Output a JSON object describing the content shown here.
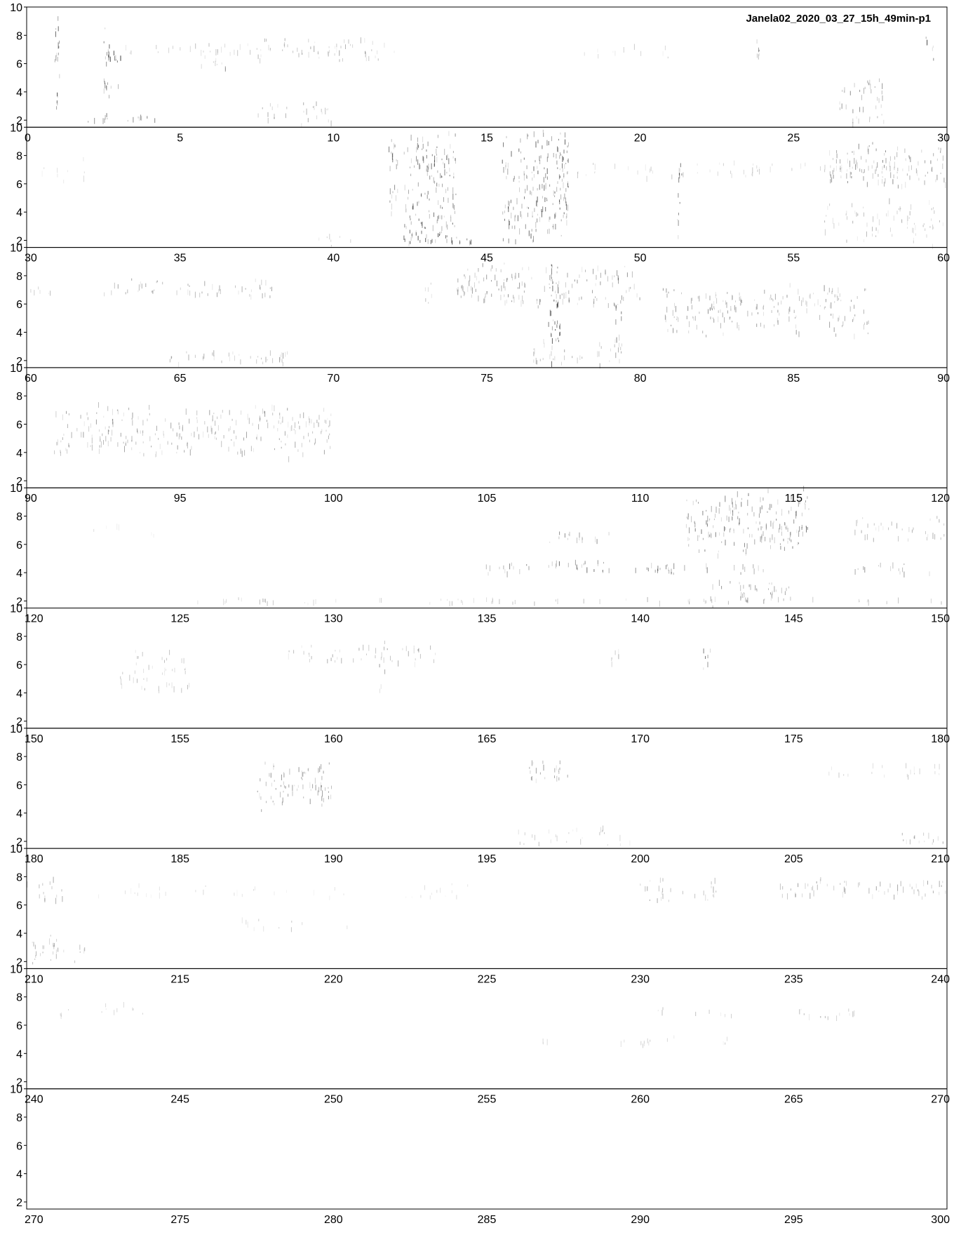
{
  "chart_data": {
    "type": "spectrogram",
    "title": "Janela02_2020_03_27_15h_49min-p1",
    "xlabel": "",
    "ylabel": "",
    "rows": 10,
    "seconds_per_row": 30,
    "x_total_range": [
      0,
      300
    ],
    "ylim": [
      1.5,
      10
    ],
    "y_ticks": [
      2,
      4,
      6,
      8,
      10
    ],
    "x_tick_step": 5,
    "grid": false,
    "ink_color": "#000000",
    "background_color": "#ffffff",
    "events": [
      {
        "t0": 0.9,
        "t1": 1.1,
        "f0": 2,
        "f1": 10,
        "intensity": 0.9
      },
      {
        "t0": 2.5,
        "t1": 3.2,
        "f0": 6,
        "f1": 7,
        "intensity": 1.0
      },
      {
        "t0": 2.5,
        "t1": 2.7,
        "f0": 1.5,
        "f1": 10,
        "intensity": 0.8
      },
      {
        "t0": 1.8,
        "t1": 4.2,
        "f0": 1.8,
        "f1": 2.4,
        "intensity": 0.7
      },
      {
        "t0": 2.5,
        "t1": 3.0,
        "f0": 4.0,
        "f1": 5.0,
        "intensity": 0.6
      },
      {
        "t0": 5.5,
        "t1": 6.5,
        "f0": 5.0,
        "f1": 7.5,
        "intensity": 0.5
      },
      {
        "t0": 3.0,
        "t1": 12.0,
        "f0": 6.5,
        "f1": 7.5,
        "intensity": 0.3
      },
      {
        "t0": 7.5,
        "t1": 11.5,
        "f0": 6.0,
        "f1": 8.0,
        "intensity": 0.45
      },
      {
        "t0": 7.5,
        "t1": 10.0,
        "f0": 1.5,
        "f1": 3.5,
        "intensity": 0.45
      },
      {
        "t0": 18.0,
        "t1": 21.0,
        "f0": 6.3,
        "f1": 7.3,
        "intensity": 0.3
      },
      {
        "t0": 23.7,
        "t1": 24.0,
        "f0": 6.0,
        "f1": 8.0,
        "intensity": 0.6
      },
      {
        "t0": 26.5,
        "t1": 28.0,
        "f0": 1.5,
        "f1": 5.0,
        "intensity": 0.6
      },
      {
        "t0": 29.3,
        "t1": 29.6,
        "f0": 6.0,
        "f1": 8.0,
        "intensity": 0.7
      },
      {
        "t0": 39.5,
        "t1": 41.5,
        "f0": 1.5,
        "f1": 2.3,
        "intensity": 0.35
      },
      {
        "t0": 42.3,
        "t1": 44.0,
        "f0": 1.5,
        "f1": 10.0,
        "intensity": 0.75
      },
      {
        "t0": 42.3,
        "t1": 44.5,
        "f0": 1.5,
        "f1": 2.8,
        "intensity": 0.9
      },
      {
        "t0": 45.5,
        "t1": 47.7,
        "f0": 1.5,
        "f1": 10.0,
        "intensity": 0.8
      },
      {
        "t0": 51.2,
        "t1": 51.4,
        "f0": 1.5,
        "f1": 9.0,
        "intensity": 0.7
      },
      {
        "t0": 53.0,
        "t1": 57.0,
        "f0": 6.5,
        "f1": 7.5,
        "intensity": 0.3
      },
      {
        "t0": 57.5,
        "t1": 59.5,
        "f0": 6.0,
        "f1": 7.5,
        "intensity": 0.4
      },
      {
        "t0": 30.5,
        "t1": 32.0,
        "f0": 6.0,
        "f1": 8.0,
        "intensity": 0.25
      },
      {
        "t0": 41.8,
        "t1": 42.1,
        "f0": 2.0,
        "f1": 10.0,
        "intensity": 0.7
      },
      {
        "t0": 46.0,
        "t1": 54.0,
        "f0": 6.3,
        "f1": 7.6,
        "intensity": 0.3
      },
      {
        "t0": 56.0,
        "t1": 60.0,
        "f0": 5.5,
        "f1": 9.0,
        "intensity": 0.6
      },
      {
        "t0": 56.0,
        "t1": 60.0,
        "f0": 1.5,
        "f1": 5.0,
        "intensity": 0.4
      },
      {
        "t0": 60.0,
        "t1": 61.0,
        "f0": 6.5,
        "f1": 7.5,
        "intensity": 0.35
      },
      {
        "t0": 62.5,
        "t1": 68.0,
        "f0": 6.3,
        "f1": 7.8,
        "intensity": 0.5
      },
      {
        "t0": 64.5,
        "t1": 68.5,
        "f0": 1.5,
        "f1": 3.0,
        "intensity": 0.5
      },
      {
        "t0": 72.8,
        "t1": 73.2,
        "f0": 5.5,
        "f1": 8.0,
        "intensity": 0.4
      },
      {
        "t0": 74.0,
        "t1": 80.0,
        "f0": 5.5,
        "f1": 9.0,
        "intensity": 0.55
      },
      {
        "t0": 77.0,
        "t1": 77.4,
        "f0": 1.5,
        "f1": 10.0,
        "intensity": 0.9
      },
      {
        "t0": 76.5,
        "t1": 79.5,
        "f0": 1.5,
        "f1": 3.5,
        "intensity": 0.5
      },
      {
        "t0": 79.2,
        "t1": 79.4,
        "f0": 3.0,
        "f1": 9.0,
        "intensity": 0.7
      },
      {
        "t0": 80.7,
        "t1": 87.5,
        "f0": 3.5,
        "f1": 7.5,
        "intensity": 0.55
      },
      {
        "t0": 90.8,
        "t1": 99.9,
        "f0": 3.5,
        "f1": 7.5,
        "intensity": 0.5
      },
      {
        "t0": 98.0,
        "t1": 100.0,
        "f0": 5.0,
        "f1": 7.5,
        "intensity": 0.35
      },
      {
        "t0": 122.0,
        "t1": 124.5,
        "f0": 6.5,
        "f1": 7.5,
        "intensity": 0.2
      },
      {
        "t0": 134.8,
        "t1": 136.5,
        "f0": 3.8,
        "f1": 4.6,
        "intensity": 0.75
      },
      {
        "t0": 137.0,
        "t1": 139.0,
        "f0": 3.8,
        "f1": 4.8,
        "intensity": 0.8
      },
      {
        "t0": 137.0,
        "t1": 139.0,
        "f0": 6.0,
        "f1": 7.0,
        "intensity": 0.6
      },
      {
        "t0": 139.8,
        "t1": 142.5,
        "f0": 3.8,
        "f1": 4.6,
        "intensity": 0.7
      },
      {
        "t0": 141.5,
        "t1": 145.5,
        "f0": 5.0,
        "f1": 10.0,
        "intensity": 0.7
      },
      {
        "t0": 142.0,
        "t1": 145.0,
        "f0": 1.5,
        "f1": 3.5,
        "intensity": 0.55
      },
      {
        "t0": 143.0,
        "t1": 144.5,
        "f0": 3.8,
        "f1": 4.6,
        "intensity": 0.55
      },
      {
        "t0": 125.5,
        "t1": 150.0,
        "f0": 1.7,
        "f1": 2.2,
        "intensity": 0.4
      },
      {
        "t0": 147.0,
        "t1": 150.0,
        "f0": 6.0,
        "f1": 8.0,
        "intensity": 0.45
      },
      {
        "t0": 147.0,
        "t1": 149.5,
        "f0": 3.8,
        "f1": 4.6,
        "intensity": 0.55
      },
      {
        "t0": 153.0,
        "t1": 155.5,
        "f0": 3.5,
        "f1": 7.5,
        "intensity": 0.35
      },
      {
        "t0": 158.5,
        "t1": 163.5,
        "f0": 6.0,
        "f1": 7.5,
        "intensity": 0.45
      },
      {
        "t0": 161.5,
        "t1": 161.8,
        "f0": 3.0,
        "f1": 8.0,
        "intensity": 0.55
      },
      {
        "t0": 169.0,
        "t1": 169.3,
        "f0": 5.5,
        "f1": 7.5,
        "intensity": 0.4
      },
      {
        "t0": 172.0,
        "t1": 172.3,
        "f0": 5.5,
        "f1": 7.5,
        "intensity": 0.75
      },
      {
        "t0": 187.5,
        "t1": 190.0,
        "f0": 4.0,
        "f1": 8.0,
        "intensity": 0.6
      },
      {
        "t0": 196.2,
        "t1": 197.8,
        "f0": 6.0,
        "f1": 8.0,
        "intensity": 0.55
      },
      {
        "t0": 196.0,
        "t1": 200.0,
        "f0": 1.5,
        "f1": 3.0,
        "intensity": 0.35
      },
      {
        "t0": 206.0,
        "t1": 210.0,
        "f0": 6.3,
        "f1": 7.6,
        "intensity": 0.3
      },
      {
        "t0": 208.5,
        "t1": 210.0,
        "f0": 1.5,
        "f1": 3.0,
        "intensity": 0.5
      },
      {
        "t0": 210.0,
        "t1": 211.2,
        "f0": 6.0,
        "f1": 8.0,
        "intensity": 0.45
      },
      {
        "t0": 210.0,
        "t1": 212.0,
        "f0": 1.5,
        "f1": 4.0,
        "intensity": 0.45
      },
      {
        "t0": 212.0,
        "t1": 224.5,
        "f0": 6.3,
        "f1": 7.5,
        "intensity": 0.2
      },
      {
        "t0": 217.0,
        "t1": 220.5,
        "f0": 4.2,
        "f1": 5.0,
        "intensity": 0.3
      },
      {
        "t0": 230.0,
        "t1": 232.5,
        "f0": 6.0,
        "f1": 8.0,
        "intensity": 0.45
      },
      {
        "t0": 234.5,
        "t1": 240.0,
        "f0": 6.3,
        "f1": 8.0,
        "intensity": 0.5
      },
      {
        "t0": 240.0,
        "t1": 244.0,
        "f0": 6.5,
        "f1": 7.5,
        "intensity": 0.25
      },
      {
        "t0": 256.5,
        "t1": 263.0,
        "f0": 4.5,
        "f1": 5.2,
        "intensity": 0.3
      },
      {
        "t0": 260.5,
        "t1": 263.0,
        "f0": 6.5,
        "f1": 7.2,
        "intensity": 0.35
      },
      {
        "t0": 265.0,
        "t1": 267.5,
        "f0": 6.3,
        "f1": 7.2,
        "intensity": 0.45
      }
    ]
  }
}
